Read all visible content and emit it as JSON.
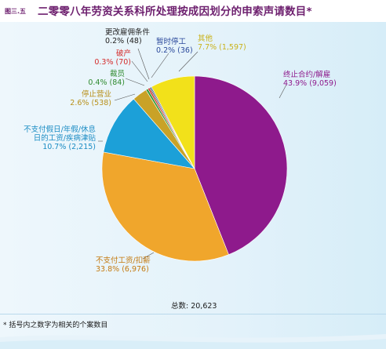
{
  "figure": {
    "number": "图三.五",
    "title": "二零零八年劳资关系科所处理按成因划分的申索声请数目*"
  },
  "chart_data": {
    "type": "pie",
    "title": "二零零八年劳资关系科所处理按成因划分的申索声请数目*",
    "slices": [
      {
        "label": "终止合约/解雇",
        "value_text": "43.9% (9,059)",
        "percent": 43.9,
        "count": 9059,
        "color": "#8e1a8c"
      },
      {
        "label": "不支付工资/扣薪",
        "value_text": "33.8% (6,976)",
        "percent": 33.8,
        "count": 6976,
        "color": "#f0a62c"
      },
      {
        "label": "不支付假日/年假/休息日的工资/疾病津贴",
        "value_text": "10.7% (2,215)",
        "percent": 10.7,
        "count": 2215,
        "color": "#1ca0d8"
      },
      {
        "label": "停止营业",
        "value_text": "2.6% (538)",
        "percent": 2.6,
        "count": 538,
        "color": "#c9a227"
      },
      {
        "label": "裁员",
        "value_text": "0.4% (84)",
        "percent": 0.4,
        "count": 84,
        "color": "#3a9a3a"
      },
      {
        "label": "破产",
        "value_text": "0.3% (70)",
        "percent": 0.3,
        "count": 70,
        "color": "#d42b2b"
      },
      {
        "label": "更改雇佣条件",
        "value_text": "0.2% (48)",
        "percent": 0.2,
        "count": 48,
        "color": "#333333"
      },
      {
        "label": "暂时停工",
        "value_text": "0.2% (36)",
        "percent": 0.2,
        "count": 36,
        "color": "#2c4a9c"
      },
      {
        "label": "其他",
        "value_text": "7.7% (1,597)",
        "percent": 7.7,
        "count": 1597,
        "color": "#f2e11a"
      }
    ]
  },
  "labels": {
    "termination": {
      "name": "终止合约/解雇",
      "value": "43.9% (9,059)"
    },
    "wages": {
      "name": "不支付工资/扣薪",
      "value": "33.8% (6,976)"
    },
    "holiday": {
      "name1": "不支付假日/年假/休息",
      "name2": "日的工资/疾病津贴",
      "value": "10.7% (2,215)"
    },
    "cessation": {
      "name": "停止营业",
      "value": "2.6% (538)"
    },
    "redundancy": {
      "name": "裁员",
      "value": "0.4% (84)"
    },
    "bankruptcy": {
      "name": "破产",
      "value": "0.3% (70)"
    },
    "variation": {
      "name": "更改雇佣条件",
      "value": "0.2% (48)"
    },
    "layoff": {
      "name": "暂时停工",
      "value": "0.2% (36)"
    },
    "others": {
      "name": "其他",
      "value": "7.7% (1,597)"
    }
  },
  "total": "总数: 20,623",
  "footnote": "* 括号内之数字为相关的个案数目"
}
